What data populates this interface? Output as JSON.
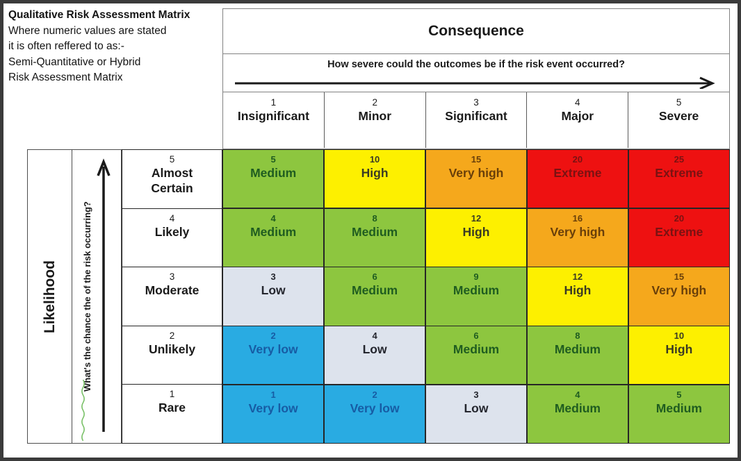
{
  "note": {
    "title": "Qualitative Risk Assessment Matrix",
    "lines": [
      "Where numeric values are stated",
      "it is often reffered to as:-",
      "Semi-Quantitative or Hybrid",
      "Risk Assessment Matrix"
    ]
  },
  "consequence": {
    "title": "Consequence",
    "question": "How severe could the outcomes be if the risk event occurred?",
    "levels": [
      {
        "num": "1",
        "label": "Insignificant"
      },
      {
        "num": "2",
        "label": "Minor"
      },
      {
        "num": "3",
        "label": "Significant"
      },
      {
        "num": "4",
        "label": "Major"
      },
      {
        "num": "5",
        "label": "Severe"
      }
    ]
  },
  "likelihood": {
    "title": "Likelihood",
    "question": "What's the chance the of the risk occurring?",
    "levels": [
      {
        "num": "5",
        "label": "Almost\nCertain"
      },
      {
        "num": "4",
        "label": "Likely"
      },
      {
        "num": "3",
        "label": "Moderate"
      },
      {
        "num": "2",
        "label": "Unlikely"
      },
      {
        "num": "1",
        "label": "Rare"
      }
    ]
  },
  "palette": {
    "green": {
      "bg": "#8DC63F",
      "fg": "#1F5C20"
    },
    "yellow": {
      "bg": "#FDF000",
      "fg": "#3A3A24"
    },
    "orange": {
      "bg": "#F5A81C",
      "fg": "#693F0A"
    },
    "red": {
      "bg": "#EE1111",
      "fg": "#7A1212"
    },
    "blue": {
      "bg": "#29ABE2",
      "fg": "#175CA4"
    },
    "gray": {
      "bg": "#DDE3ED",
      "fg": "#24262E"
    }
  },
  "matrix": {
    "rows": [
      {
        "likelihood": "5",
        "cells": [
          {
            "score": "5",
            "rating": "Medium",
            "color": "green"
          },
          {
            "score": "10",
            "rating": "High",
            "color": "yellow"
          },
          {
            "score": "15",
            "rating": "Very high",
            "color": "orange"
          },
          {
            "score": "20",
            "rating": "Extreme",
            "color": "red"
          },
          {
            "score": "25",
            "rating": "Extreme",
            "color": "red"
          }
        ]
      },
      {
        "likelihood": "4",
        "cells": [
          {
            "score": "4",
            "rating": "Medium",
            "color": "green"
          },
          {
            "score": "8",
            "rating": "Medium",
            "color": "green"
          },
          {
            "score": "12",
            "rating": "High",
            "color": "yellow"
          },
          {
            "score": "16",
            "rating": "Very high",
            "color": "orange"
          },
          {
            "score": "20",
            "rating": "Extreme",
            "color": "red"
          }
        ]
      },
      {
        "likelihood": "3",
        "cells": [
          {
            "score": "3",
            "rating": "Low",
            "color": "gray"
          },
          {
            "score": "6",
            "rating": "Medium",
            "color": "green"
          },
          {
            "score": "9",
            "rating": "Medium",
            "color": "green"
          },
          {
            "score": "12",
            "rating": "High",
            "color": "yellow"
          },
          {
            "score": "15",
            "rating": "Very high",
            "color": "orange"
          }
        ]
      },
      {
        "likelihood": "2",
        "cells": [
          {
            "score": "2",
            "rating": "Very low",
            "color": "blue"
          },
          {
            "score": "4",
            "rating": "Low",
            "color": "gray"
          },
          {
            "score": "6",
            "rating": "Medium",
            "color": "green"
          },
          {
            "score": "8",
            "rating": "Medium",
            "color": "green"
          },
          {
            "score": "10",
            "rating": "High",
            "color": "yellow"
          }
        ]
      },
      {
        "likelihood": "1",
        "cells": [
          {
            "score": "1",
            "rating": "Very low",
            "color": "blue"
          },
          {
            "score": "2",
            "rating": "Very low",
            "color": "blue"
          },
          {
            "score": "3",
            "rating": "Low",
            "color": "gray"
          },
          {
            "score": "4",
            "rating": "Medium",
            "color": "green"
          },
          {
            "score": "5",
            "rating": "Medium",
            "color": "green"
          }
        ]
      }
    ]
  },
  "chart_data": {
    "type": "heatmap",
    "title": "Qualitative Risk Assessment Matrix",
    "xlabel": "Consequence",
    "ylabel": "Likelihood",
    "x_categories": [
      "1 Insignificant",
      "2 Minor",
      "3 Significant",
      "4 Major",
      "5 Severe"
    ],
    "y_categories": [
      "5 Almost Certain",
      "4 Likely",
      "3 Moderate",
      "2 Unlikely",
      "1 Rare"
    ],
    "scores": [
      [
        5,
        10,
        15,
        20,
        25
      ],
      [
        4,
        8,
        12,
        16,
        20
      ],
      [
        3,
        6,
        9,
        12,
        15
      ],
      [
        2,
        4,
        6,
        8,
        10
      ],
      [
        1,
        2,
        3,
        4,
        5
      ]
    ],
    "ratings": [
      [
        "Medium",
        "High",
        "Very high",
        "Extreme",
        "Extreme"
      ],
      [
        "Medium",
        "Medium",
        "High",
        "Very high",
        "Extreme"
      ],
      [
        "Low",
        "Medium",
        "Medium",
        "High",
        "Very high"
      ],
      [
        "Very low",
        "Low",
        "Medium",
        "Medium",
        "High"
      ],
      [
        "Very low",
        "Very low",
        "Low",
        "Medium",
        "Medium"
      ]
    ],
    "color_legend": "Very low=blue #29ABE2, Low=gray #DDE3ED, Medium=green #8DC63F, High=yellow #FDF000, Very high=orange #F5A81C, Extreme=red #EE1111"
  }
}
